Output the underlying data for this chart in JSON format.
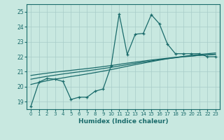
{
  "xlabel": "Humidex (Indice chaleur)",
  "background_color": "#c8e8e0",
  "grid_color": "#a8ccc8",
  "line_color": "#1a6b6b",
  "xlim": [
    -0.5,
    23.5
  ],
  "ylim": [
    18.5,
    25.5
  ],
  "yticks": [
    19,
    20,
    21,
    22,
    23,
    24,
    25
  ],
  "xtick_labels": [
    "0",
    "1",
    "2",
    "3",
    "4",
    "5",
    "6",
    "7",
    "8",
    "9",
    "10",
    "11",
    "12",
    "13",
    "14",
    "15",
    "16",
    "17",
    "18",
    "19",
    "20",
    "21",
    "22",
    "23"
  ],
  "main_y": [
    18.7,
    20.3,
    20.55,
    20.5,
    20.35,
    19.15,
    19.3,
    19.3,
    19.7,
    19.85,
    21.4,
    24.85,
    22.15,
    23.5,
    23.55,
    24.8,
    24.2,
    22.85,
    22.2,
    22.2,
    22.2,
    22.2,
    22.0,
    22.0
  ],
  "smooth1_y": [
    20.15,
    20.28,
    20.4,
    20.5,
    20.59,
    20.68,
    20.76,
    20.85,
    20.94,
    21.04,
    21.14,
    21.25,
    21.36,
    21.47,
    21.57,
    21.67,
    21.77,
    21.86,
    21.94,
    22.02,
    22.09,
    22.15,
    22.2,
    22.25
  ],
  "smooth2_y": [
    20.5,
    20.6,
    20.69,
    20.77,
    20.85,
    20.92,
    20.99,
    21.06,
    21.13,
    21.21,
    21.29,
    21.38,
    21.47,
    21.56,
    21.64,
    21.72,
    21.8,
    21.87,
    21.93,
    21.99,
    22.04,
    22.09,
    22.13,
    22.17
  ],
  "smooth3_y": [
    20.75,
    20.83,
    20.9,
    20.97,
    21.03,
    21.09,
    21.15,
    21.21,
    21.27,
    21.34,
    21.41,
    21.49,
    21.57,
    21.64,
    21.71,
    21.78,
    21.84,
    21.9,
    21.96,
    22.01,
    22.05,
    22.09,
    22.12,
    22.15
  ]
}
